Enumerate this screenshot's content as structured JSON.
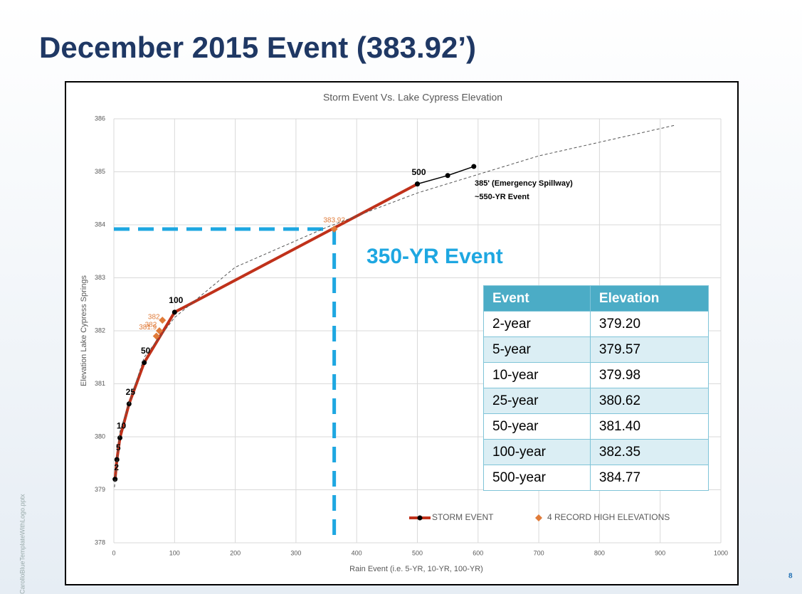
{
  "slide": {
    "title": "December 2015 Event (383.92’)",
    "side_note": "CarolloBlueTemplateWithLogo.pptx",
    "page_number": "8",
    "table": {
      "header": [
        "Event",
        "Elevation"
      ],
      "rows": [
        [
          "2-year",
          "379.20"
        ],
        [
          "5-year",
          "379.57"
        ],
        [
          "10-year",
          "379.98"
        ],
        [
          "25-year",
          "380.62"
        ],
        [
          "50-year",
          "381.40"
        ],
        [
          "100-year",
          "382.35"
        ],
        [
          "500-year",
          "384.77"
        ]
      ]
    }
  },
  "chart_data": {
    "type": "line",
    "title": "Storm Event Vs. Lake Cypress Elevation",
    "x_label": "Rain Event (i.e. 5-YR, 10-YR, 100-YR)",
    "y_label": "Elevation Lake Cypress Springs",
    "xlim": [
      0,
      1000
    ],
    "xticks": [
      0,
      100,
      200,
      300,
      400,
      500,
      600,
      700,
      800,
      900,
      1000
    ],
    "ylim": [
      378,
      386
    ],
    "yticks": [
      378,
      379,
      380,
      381,
      382,
      383,
      384,
      385,
      386
    ],
    "grid": true,
    "legend": "bottom",
    "series": [
      {
        "name": "STORM EVENT",
        "color": "#c0311a",
        "marker_color": "#000000",
        "x": [
          2,
          5,
          10,
          25,
          50,
          100,
          500
        ],
        "values": [
          379.2,
          379.57,
          379.98,
          380.62,
          381.4,
          382.35,
          384.77
        ],
        "labels": [
          "2",
          "5",
          "10",
          "25",
          "50",
          "100",
          "500"
        ]
      },
      {
        "name": "4 RECORD HIGH ELEVATIONS",
        "color": "#e07b39",
        "marker": "diamond",
        "x": [
          70,
          75,
          80,
          363
        ],
        "values": [
          381.9,
          382.0,
          382.2,
          383.92
        ],
        "value_labels": [
          "381.9",
          "382",
          "382",
          "383.92"
        ]
      },
      {
        "color": "#000000",
        "marker_color": "#000000",
        "x": [
          500,
          550,
          593
        ],
        "values": [
          384.77,
          384.93,
          385.1
        ]
      },
      {
        "color": "#555555",
        "style": "dashed",
        "x": [
          1,
          10,
          50,
          100,
          200,
          350,
          500,
          700,
          925
        ],
        "values": [
          379.05,
          380.1,
          381.5,
          382.25,
          383.2,
          383.95,
          384.6,
          385.3,
          385.88
        ]
      }
    ],
    "annotations": [
      {
        "text": "385' (Emergency Spillway)"
      },
      {
        "text": "~550-YR Event"
      },
      {
        "text": "350-YR Event"
      }
    ],
    "reference_color": "#1ea7e1"
  }
}
